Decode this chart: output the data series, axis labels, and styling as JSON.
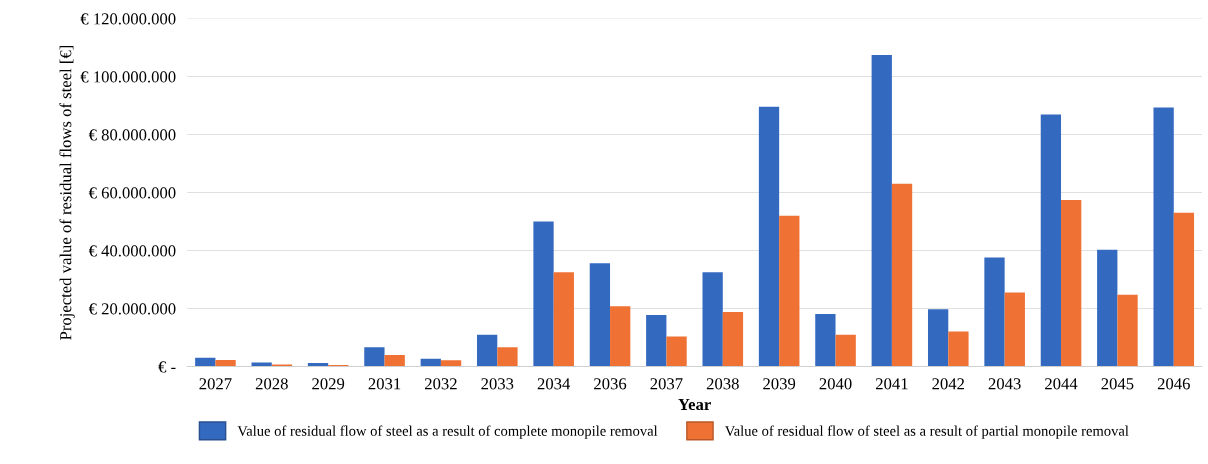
{
  "chart_data": {
    "type": "bar",
    "xlabel": "Year",
    "ylabel": "Projected value of residual flows of steel [€]",
    "categories": [
      "2027",
      "2028",
      "2029",
      "2031",
      "2032",
      "2033",
      "2034",
      "2036",
      "2037",
      "2038",
      "2039",
      "2040",
      "2041",
      "2042",
      "2043",
      "2044",
      "2045",
      "2046"
    ],
    "series": [
      {
        "name": "Value of residual flow of steel as a result of complete monopile removal",
        "color": "#3469c0",
        "values": [
          3000000,
          1400000,
          1200000,
          6700000,
          2700000,
          11000000,
          50000000,
          35600000,
          17800000,
          32500000,
          89600000,
          18100000,
          107400000,
          19800000,
          37600000,
          86900000,
          40300000,
          89300000
        ]
      },
      {
        "name": "Value of residual flow of steel as a result of partial monopile removal",
        "color": "#ef7234",
        "values": [
          2300000,
          700000,
          500000,
          4000000,
          2200000,
          6700000,
          32500000,
          20800000,
          10400000,
          18800000,
          52000000,
          11000000,
          63000000,
          12100000,
          25500000,
          57400000,
          24800000,
          53000000
        ]
      }
    ],
    "ylim": [
      0,
      120000000
    ],
    "yticks": [
      {
        "value": 0,
        "label": "€ -"
      },
      {
        "value": 20000000,
        "label": "€ 20.000.000"
      },
      {
        "value": 40000000,
        "label": "€ 40.000.000"
      },
      {
        "value": 60000000,
        "label": "€ 60.000.000"
      },
      {
        "value": 80000000,
        "label": "€ 80.000.000"
      },
      {
        "value": 100000000,
        "label": "€ 100.000.000"
      },
      {
        "value": 120000000,
        "label": "€ 120.000.000"
      }
    ],
    "grid": "y",
    "legend": "bottom"
  }
}
